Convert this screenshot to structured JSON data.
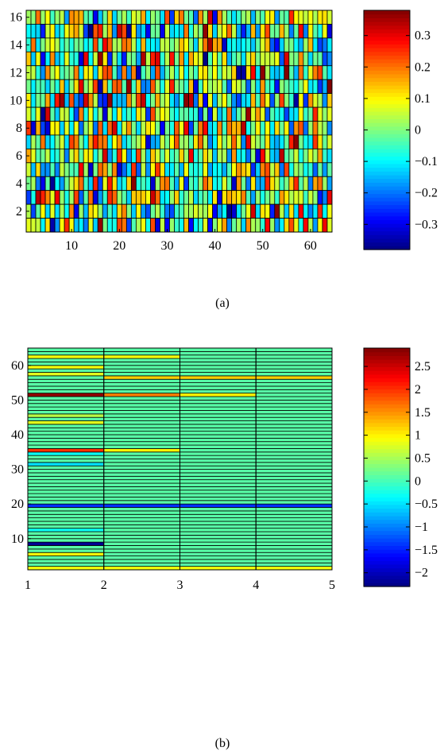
{
  "chart_data": [
    {
      "type": "heatmap",
      "caption": "(a)",
      "x_range": [
        0.5,
        64.5
      ],
      "y_range": [
        0.5,
        16.5
      ],
      "x_ticks": [
        10,
        20,
        30,
        40,
        50,
        60
      ],
      "y_ticks": [
        2,
        4,
        6,
        8,
        10,
        12,
        14,
        16
      ],
      "n_cols": 64,
      "n_rows": 16,
      "value_range": [
        -0.38,
        0.38
      ],
      "colormap": "jet",
      "colorbar": {
        "ticks": [
          -0.3,
          -0.2,
          -0.1,
          0,
          0.1,
          0.2,
          0.3
        ],
        "tick_labels": [
          "−0.3",
          "−0.2",
          "−0.1",
          "0",
          "0.1",
          "0.2",
          "0.3"
        ],
        "range": [
          -0.38,
          0.38
        ]
      },
      "values": "dense 16×64 grid of weights spanning roughly −0.38 to 0.38; individual cell values not legible"
    },
    {
      "type": "heatmap",
      "caption": "(b)",
      "x_range": [
        1,
        5
      ],
      "y_range": [
        1,
        65
      ],
      "x_ticks": [
        1,
        2,
        3,
        4,
        5
      ],
      "y_ticks": [
        10,
        20,
        30,
        40,
        50,
        60
      ],
      "n_cols": 4,
      "n_rows": 64,
      "background_value": 0.1,
      "value_range": [
        -2.3,
        2.9
      ],
      "colormap": "jet",
      "colorbar": {
        "ticks": [
          -2,
          -1.5,
          -1,
          -0.5,
          0,
          0.5,
          1,
          1.5,
          2,
          2.5
        ],
        "tick_labels": [
          "−2",
          "−1.5",
          "−1",
          "−0.5",
          "0",
          "0.5",
          "1",
          "1.5",
          "2",
          "2.5"
        ],
        "range": [
          -2.3,
          2.9
        ]
      },
      "highlighted_rows": [
        {
          "row": 1,
          "values": [
            0.9,
            0.9,
            0.9,
            0.9
          ]
        },
        {
          "row": 5,
          "values": [
            0.9,
            0.1,
            0.1,
            0.1
          ]
        },
        {
          "row": 8,
          "values": [
            -2.2,
            0.1,
            0.1,
            0.1
          ]
        },
        {
          "row": 12,
          "values": [
            -0.3,
            0.1,
            0.1,
            0.1
          ]
        },
        {
          "row": 19,
          "values": [
            -1.4,
            -1.4,
            -1.4,
            -1.4
          ]
        },
        {
          "row": 31,
          "values": [
            -0.5,
            0.1,
            0.1,
            0.1
          ]
        },
        {
          "row": 34,
          "values": [
            -0.3,
            0.1,
            0.1,
            0.1
          ]
        },
        {
          "row": 35,
          "values": [
            2.0,
            1.0,
            0.1,
            0.1
          ]
        },
        {
          "row": 43,
          "values": [
            0.8,
            0.1,
            0.1,
            0.1
          ]
        },
        {
          "row": 45,
          "values": [
            0.6,
            0.1,
            0.1,
            0.1
          ]
        },
        {
          "row": 51,
          "values": [
            2.8,
            1.6,
            1.0,
            0.1
          ]
        },
        {
          "row": 56,
          "values": [
            0.1,
            1.2,
            1.2,
            1.2
          ]
        },
        {
          "row": 57,
          "values": [
            0.8,
            0.1,
            0.1,
            0.1
          ]
        },
        {
          "row": 59,
          "values": [
            0.9,
            0.1,
            0.1,
            0.1
          ]
        },
        {
          "row": 62,
          "values": [
            0.9,
            0.9,
            0.1,
            0.1
          ]
        }
      ]
    }
  ]
}
